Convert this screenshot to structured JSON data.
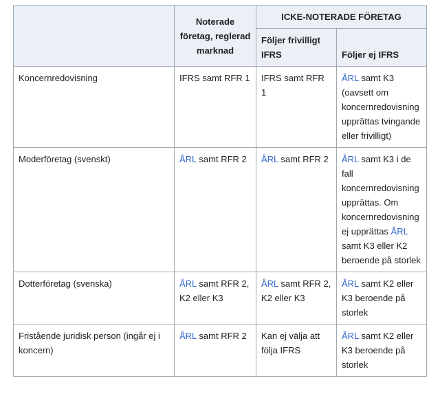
{
  "header": {
    "col1": "",
    "listed": "Noterade företag, reglerad marknad",
    "unlisted_group": "ICKE-NOTERADE FÖRETAG",
    "voluntary_ifrs": "Följer frivilligt IFRS",
    "no_ifrs": "Följer ej IFRS"
  },
  "rows": [
    {
      "label": "Koncernredovisning",
      "cells": [
        [
          {
            "t": "IFRS samt RFR 1"
          }
        ],
        [
          {
            "t": "IFRS samt RFR 1"
          }
        ],
        [
          {
            "t": "ÅRL",
            "link": true
          },
          {
            "t": " samt K3 (oavsett om koncernredovisning upprättas tvingande eller frivilligt)"
          }
        ]
      ]
    },
    {
      "label": "Moderföretag (svenskt)",
      "cells": [
        [
          {
            "t": "ÅRL",
            "link": true
          },
          {
            "t": " samt RFR 2"
          }
        ],
        [
          {
            "t": "ÅRL",
            "link": true
          },
          {
            "t": " samt RFR 2"
          }
        ],
        [
          {
            "t": "ÅRL",
            "link": true
          },
          {
            "t": " samt K3 i de fall koncernredovisning upprättas. Om koncernredovisning ej upprättas "
          },
          {
            "t": "ÅRL",
            "link": true
          },
          {
            "t": " samt K3 eller K2 beroende på storlek"
          }
        ]
      ]
    },
    {
      "label": "Dotterföretag (svenska)",
      "cells": [
        [
          {
            "t": "ÅRL",
            "link": true
          },
          {
            "t": " samt RFR 2, K2 eller K3"
          }
        ],
        [
          {
            "t": "ÅRL",
            "link": true
          },
          {
            "t": " samt RFR 2, K2 eller K3"
          }
        ],
        [
          {
            "t": "ÅRL",
            "link": true
          },
          {
            "t": " samt K2 eller K3 beroende på storlek"
          }
        ]
      ]
    },
    {
      "label": "Fristående juridisk person (ingår ej i koncern)",
      "cells": [
        [
          {
            "t": "ÅRL",
            "link": true
          },
          {
            "t": " samt RFR 2"
          }
        ],
        [
          {
            "t": "Kan ej välja att följa IFRS"
          }
        ],
        [
          {
            "t": "ÅRL",
            "link": true
          },
          {
            "t": " samt K2 eller K3 beroende på storlek"
          }
        ]
      ]
    }
  ]
}
